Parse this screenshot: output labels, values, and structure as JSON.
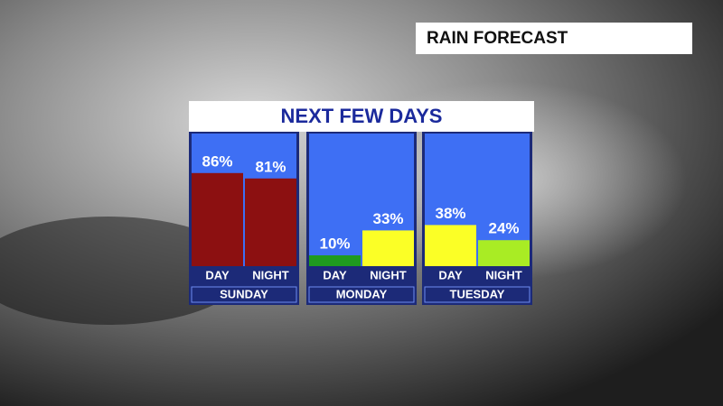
{
  "chart_data": {
    "type": "bar",
    "label": "RAIN FORECAST",
    "title": "NEXT FEW DAYS",
    "ylim": [
      0,
      100
    ],
    "panels": [
      {
        "name": "SUNDAY",
        "categories": [
          "DAY",
          "NIGHT"
        ],
        "values": [
          86,
          81
        ],
        "value_labels": [
          "86%",
          "81%"
        ],
        "colors": [
          "#8c1011",
          "#8c1011"
        ]
      },
      {
        "name": "MONDAY",
        "categories": [
          "DAY",
          "NIGHT"
        ],
        "values": [
          10,
          33
        ],
        "value_labels": [
          "10%",
          "33%"
        ],
        "colors": [
          "#1f9a1f",
          "#fbff26"
        ]
      },
      {
        "name": "TUESDAY",
        "categories": [
          "DAY",
          "NIGHT"
        ],
        "values": [
          38,
          24
        ],
        "value_labels": [
          "38%",
          "24%"
        ],
        "colors": [
          "#fbff26",
          "#a9ec24"
        ]
      }
    ]
  }
}
